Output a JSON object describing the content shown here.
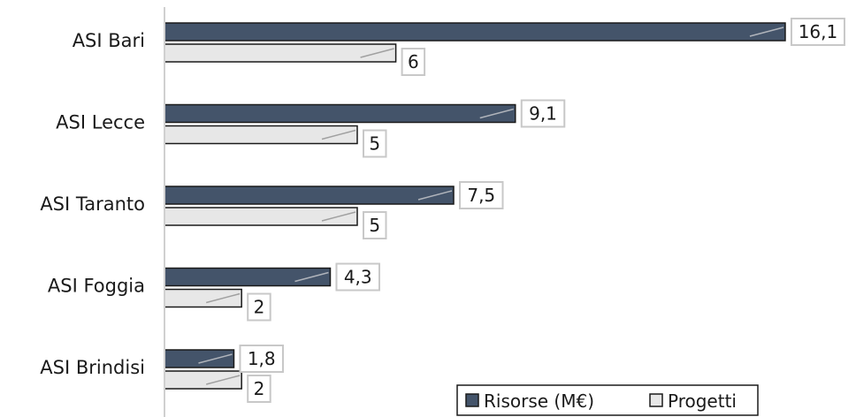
{
  "chart_data": {
    "type": "bar",
    "orientation": "horizontal",
    "categories": [
      "ASI Bari",
      "ASI Lecce",
      "ASI Taranto",
      "ASI Foggia",
      "ASI Brindisi"
    ],
    "series": [
      {
        "name": "Risorse (M€)",
        "values": [
          16.1,
          9.1,
          7.5,
          4.3,
          1.8
        ],
        "labels": [
          "16,1",
          "9,1",
          "7,5",
          "4,3",
          "1,8"
        ],
        "color": "#44546a"
      },
      {
        "name": "Progetti",
        "values": [
          6,
          5,
          5,
          2,
          2
        ],
        "labels": [
          "6",
          "5",
          "5",
          "2",
          "2"
        ],
        "color": "#e7e7e7"
      }
    ],
    "legend_placement": "bottom-right",
    "grid": false
  }
}
